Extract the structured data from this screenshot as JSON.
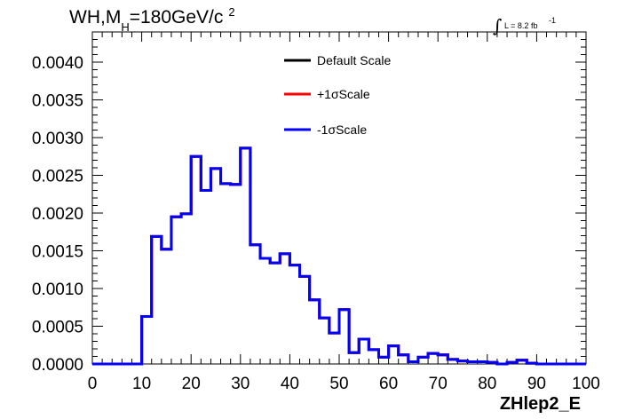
{
  "title": {
    "prefix": "WH,M",
    "subscript": "H",
    "suffix": "=180GeV/c",
    "superscript": "2"
  },
  "lumi": {
    "integral": "∫",
    "text": "L = 8.2 fb",
    "superscript": "-1"
  },
  "chart_data": {
    "type": "line",
    "xlabel": "ZHlep2_E",
    "ylabel": "",
    "xlim": [
      0,
      100
    ],
    "ylim": [
      0,
      0.0044
    ],
    "x_ticks": [
      0,
      10,
      20,
      30,
      40,
      50,
      60,
      70,
      80,
      90,
      100
    ],
    "y_ticks": [
      "0.0000",
      "0.0005",
      "0.0010",
      "0.0015",
      "0.0020",
      "0.0025",
      "0.0030",
      "0.0035",
      "0.0040"
    ],
    "legend_position": "top-center",
    "bin_edges": [
      0,
      2,
      4,
      6,
      8,
      10,
      12,
      14,
      16,
      18,
      20,
      22,
      24,
      26,
      28,
      30,
      32,
      34,
      36,
      38,
      40,
      42,
      44,
      46,
      48,
      50,
      52,
      54,
      56,
      58,
      60,
      62,
      64,
      66,
      68,
      70,
      72,
      74,
      76,
      78,
      80,
      82,
      84,
      86,
      88,
      90,
      92,
      94,
      96,
      98,
      100
    ],
    "series": [
      {
        "name": "Default Scale",
        "color": "#000000",
        "values": [
          0,
          0,
          0,
          0,
          0,
          0.00063,
          0.00169,
          0.00152,
          0.00195,
          0.00199,
          0.00275,
          0.0023,
          0.00259,
          0.00239,
          0.00238,
          0.00286,
          0.00158,
          0.0014,
          0.00134,
          0.00146,
          0.00131,
          0.00116,
          0.00085,
          0.00061,
          0.00041,
          0.00072,
          0.00015,
          0.00033,
          0.00019,
          9e-05,
          0.00024,
          0.00012,
          3e-05,
          9e-05,
          0.00014,
          0.00012,
          6e-05,
          4e-05,
          3e-05,
          3e-05,
          2e-05,
          0.0,
          2e-05,
          5e-05,
          1e-05,
          0.0,
          0.0,
          0.0,
          0.0,
          0.0
        ]
      },
      {
        "name": "+1σScale",
        "color": "#ff0000",
        "values": [
          0,
          0,
          0,
          0,
          0,
          0.00063,
          0.00169,
          0.00152,
          0.00195,
          0.00199,
          0.00275,
          0.0023,
          0.00259,
          0.00239,
          0.00238,
          0.00286,
          0.00158,
          0.0014,
          0.00134,
          0.00146,
          0.00131,
          0.00116,
          0.00085,
          0.00061,
          0.00041,
          0.00072,
          0.00015,
          0.00033,
          0.00019,
          9e-05,
          0.00024,
          0.00012,
          3e-05,
          9e-05,
          0.00014,
          0.00012,
          6e-05,
          4e-05,
          3e-05,
          3e-05,
          2e-05,
          0.0,
          2e-05,
          5e-05,
          1e-05,
          0.0,
          0.0,
          0.0,
          0.0,
          0.0
        ]
      },
      {
        "name": "-1σScale",
        "color": "#0000ff",
        "values": [
          0,
          0,
          0,
          0,
          0,
          0.00063,
          0.00169,
          0.00152,
          0.00195,
          0.00199,
          0.00275,
          0.0023,
          0.00259,
          0.00239,
          0.00238,
          0.00286,
          0.00158,
          0.0014,
          0.00134,
          0.00146,
          0.00131,
          0.00116,
          0.00085,
          0.00061,
          0.00041,
          0.00072,
          0.00015,
          0.00033,
          0.00019,
          9e-05,
          0.00024,
          0.00012,
          3e-05,
          9e-05,
          0.00014,
          0.00012,
          6e-05,
          4e-05,
          3e-05,
          3e-05,
          2e-05,
          0.0,
          2e-05,
          5e-05,
          1e-05,
          0.0,
          0.0,
          0.0,
          0.0,
          0.0
        ]
      }
    ]
  }
}
